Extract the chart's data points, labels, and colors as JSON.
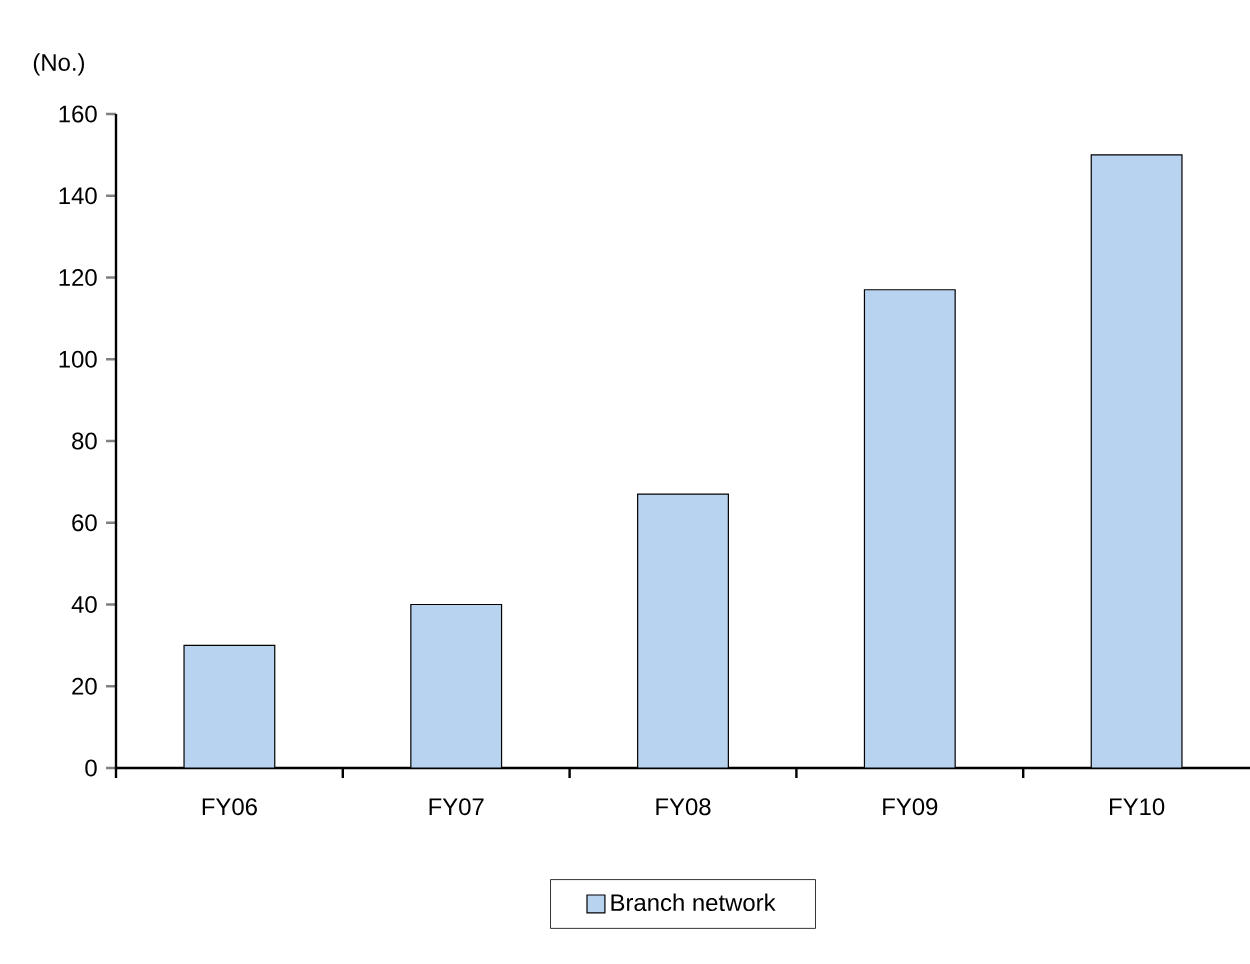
{
  "chart_data": {
    "type": "bar",
    "ylabel": "(No.)",
    "categories": [
      "FY06",
      "FY07",
      "FY08",
      "FY09",
      "FY10"
    ],
    "series": [
      {
        "name": "Branch network",
        "color": "#b8d3f0",
        "values": [
          30,
          40,
          67,
          117,
          150
        ]
      }
    ],
    "ylim": [
      0,
      160
    ],
    "yticks": [
      0,
      20,
      40,
      60,
      80,
      100,
      120,
      140,
      160
    ],
    "legend": "bottom"
  }
}
